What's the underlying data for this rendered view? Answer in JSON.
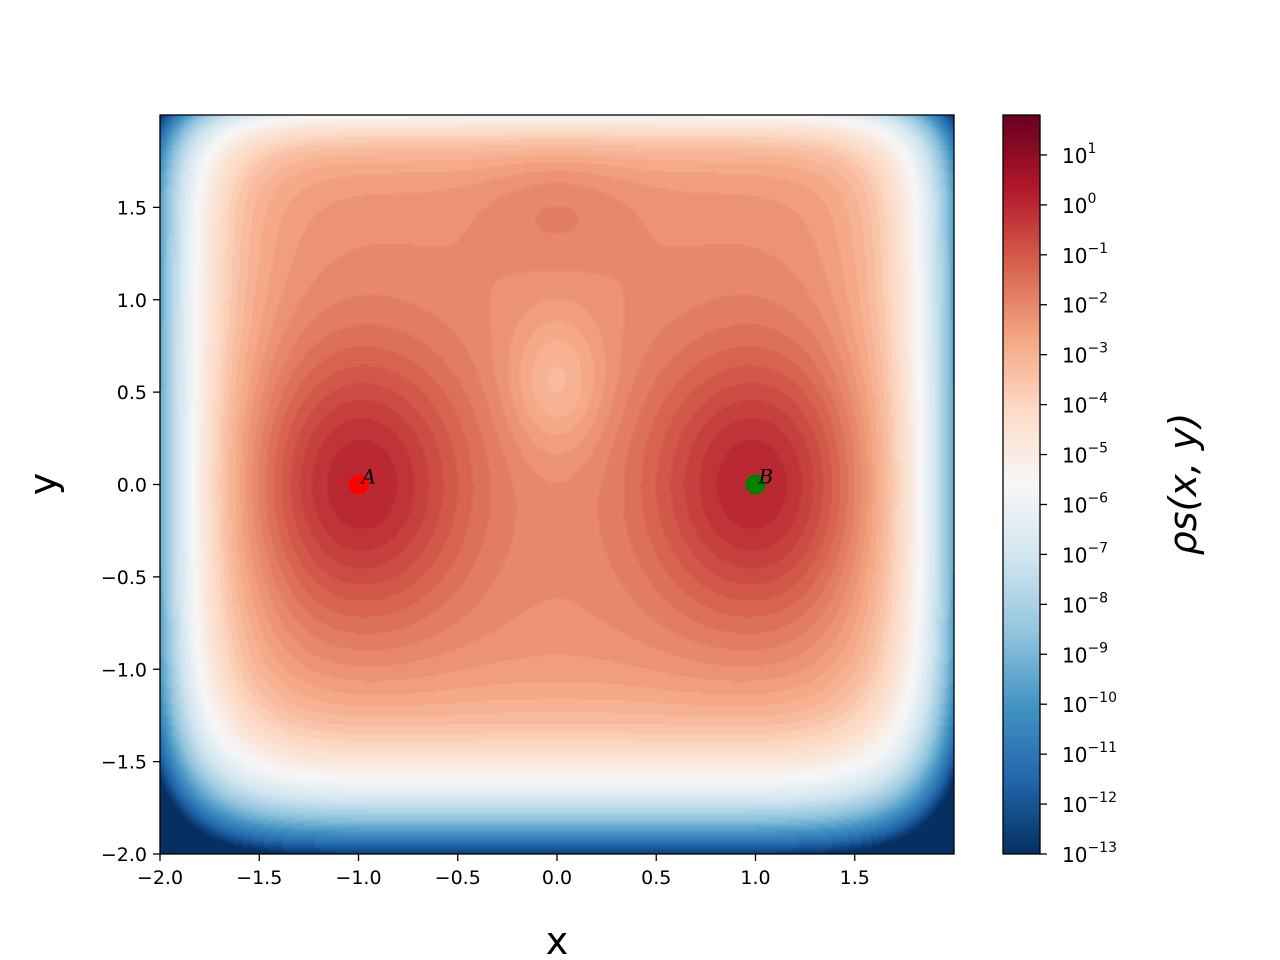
{
  "chart_data": {
    "type": "heatmap",
    "title": "",
    "xlabel": "x",
    "ylabel": "y",
    "colorbar_label": "ρs(x, y)",
    "colorbar_scale": "log",
    "colormap": "RdBu_r",
    "xlim": [
      -2.0,
      2.0
    ],
    "ylim": [
      -2.0,
      2.0
    ],
    "x_ticks": [
      {
        "value": -2.0,
        "label": "−2.0"
      },
      {
        "value": -1.5,
        "label": "−1.5"
      },
      {
        "value": -1.0,
        "label": "−1.0"
      },
      {
        "value": -0.5,
        "label": "−0.5"
      },
      {
        "value": 0.0,
        "label": "0.0"
      },
      {
        "value": 0.5,
        "label": "0.5"
      },
      {
        "value": 1.0,
        "label": "1.0"
      },
      {
        "value": 1.5,
        "label": "1.5"
      }
    ],
    "y_ticks": [
      {
        "value": -2.0,
        "label": "−2.0"
      },
      {
        "value": -1.5,
        "label": "−1.5"
      },
      {
        "value": -1.0,
        "label": "−1.0"
      },
      {
        "value": -0.5,
        "label": "−0.5"
      },
      {
        "value": 0.0,
        "label": "0.0"
      },
      {
        "value": 0.5,
        "label": "0.5"
      },
      {
        "value": 1.0,
        "label": "1.0"
      },
      {
        "value": 1.5,
        "label": "1.5"
      }
    ],
    "colorbar_range_log10": [
      -13,
      1.8
    ],
    "colorbar_ticks": [
      {
        "exponent": 1,
        "base": "10",
        "sup": "1"
      },
      {
        "exponent": 0,
        "base": "10",
        "sup": "0"
      },
      {
        "exponent": -1,
        "base": "10",
        "sup": "−1"
      },
      {
        "exponent": -2,
        "base": "10",
        "sup": "−2"
      },
      {
        "exponent": -3,
        "base": "10",
        "sup": "−3"
      },
      {
        "exponent": -4,
        "base": "10",
        "sup": "−4"
      },
      {
        "exponent": -5,
        "base": "10",
        "sup": "−5"
      },
      {
        "exponent": -6,
        "base": "10",
        "sup": "−6"
      },
      {
        "exponent": -7,
        "base": "10",
        "sup": "−7"
      },
      {
        "exponent": -8,
        "base": "10",
        "sup": "−8"
      },
      {
        "exponent": -9,
        "base": "10",
        "sup": "−9"
      },
      {
        "exponent": -10,
        "base": "10",
        "sup": "−10"
      },
      {
        "exponent": -11,
        "base": "10",
        "sup": "−11"
      },
      {
        "exponent": -12,
        "base": "10",
        "sup": "−12"
      },
      {
        "exponent": -13,
        "base": "10",
        "sup": "−13"
      }
    ],
    "markers": [
      {
        "label": "A",
        "x": -1.0,
        "y": 0.0,
        "color": "#ff0000"
      },
      {
        "label": "B",
        "x": 1.0,
        "y": 0.0,
        "color": "#008000"
      }
    ],
    "grid": false
  }
}
